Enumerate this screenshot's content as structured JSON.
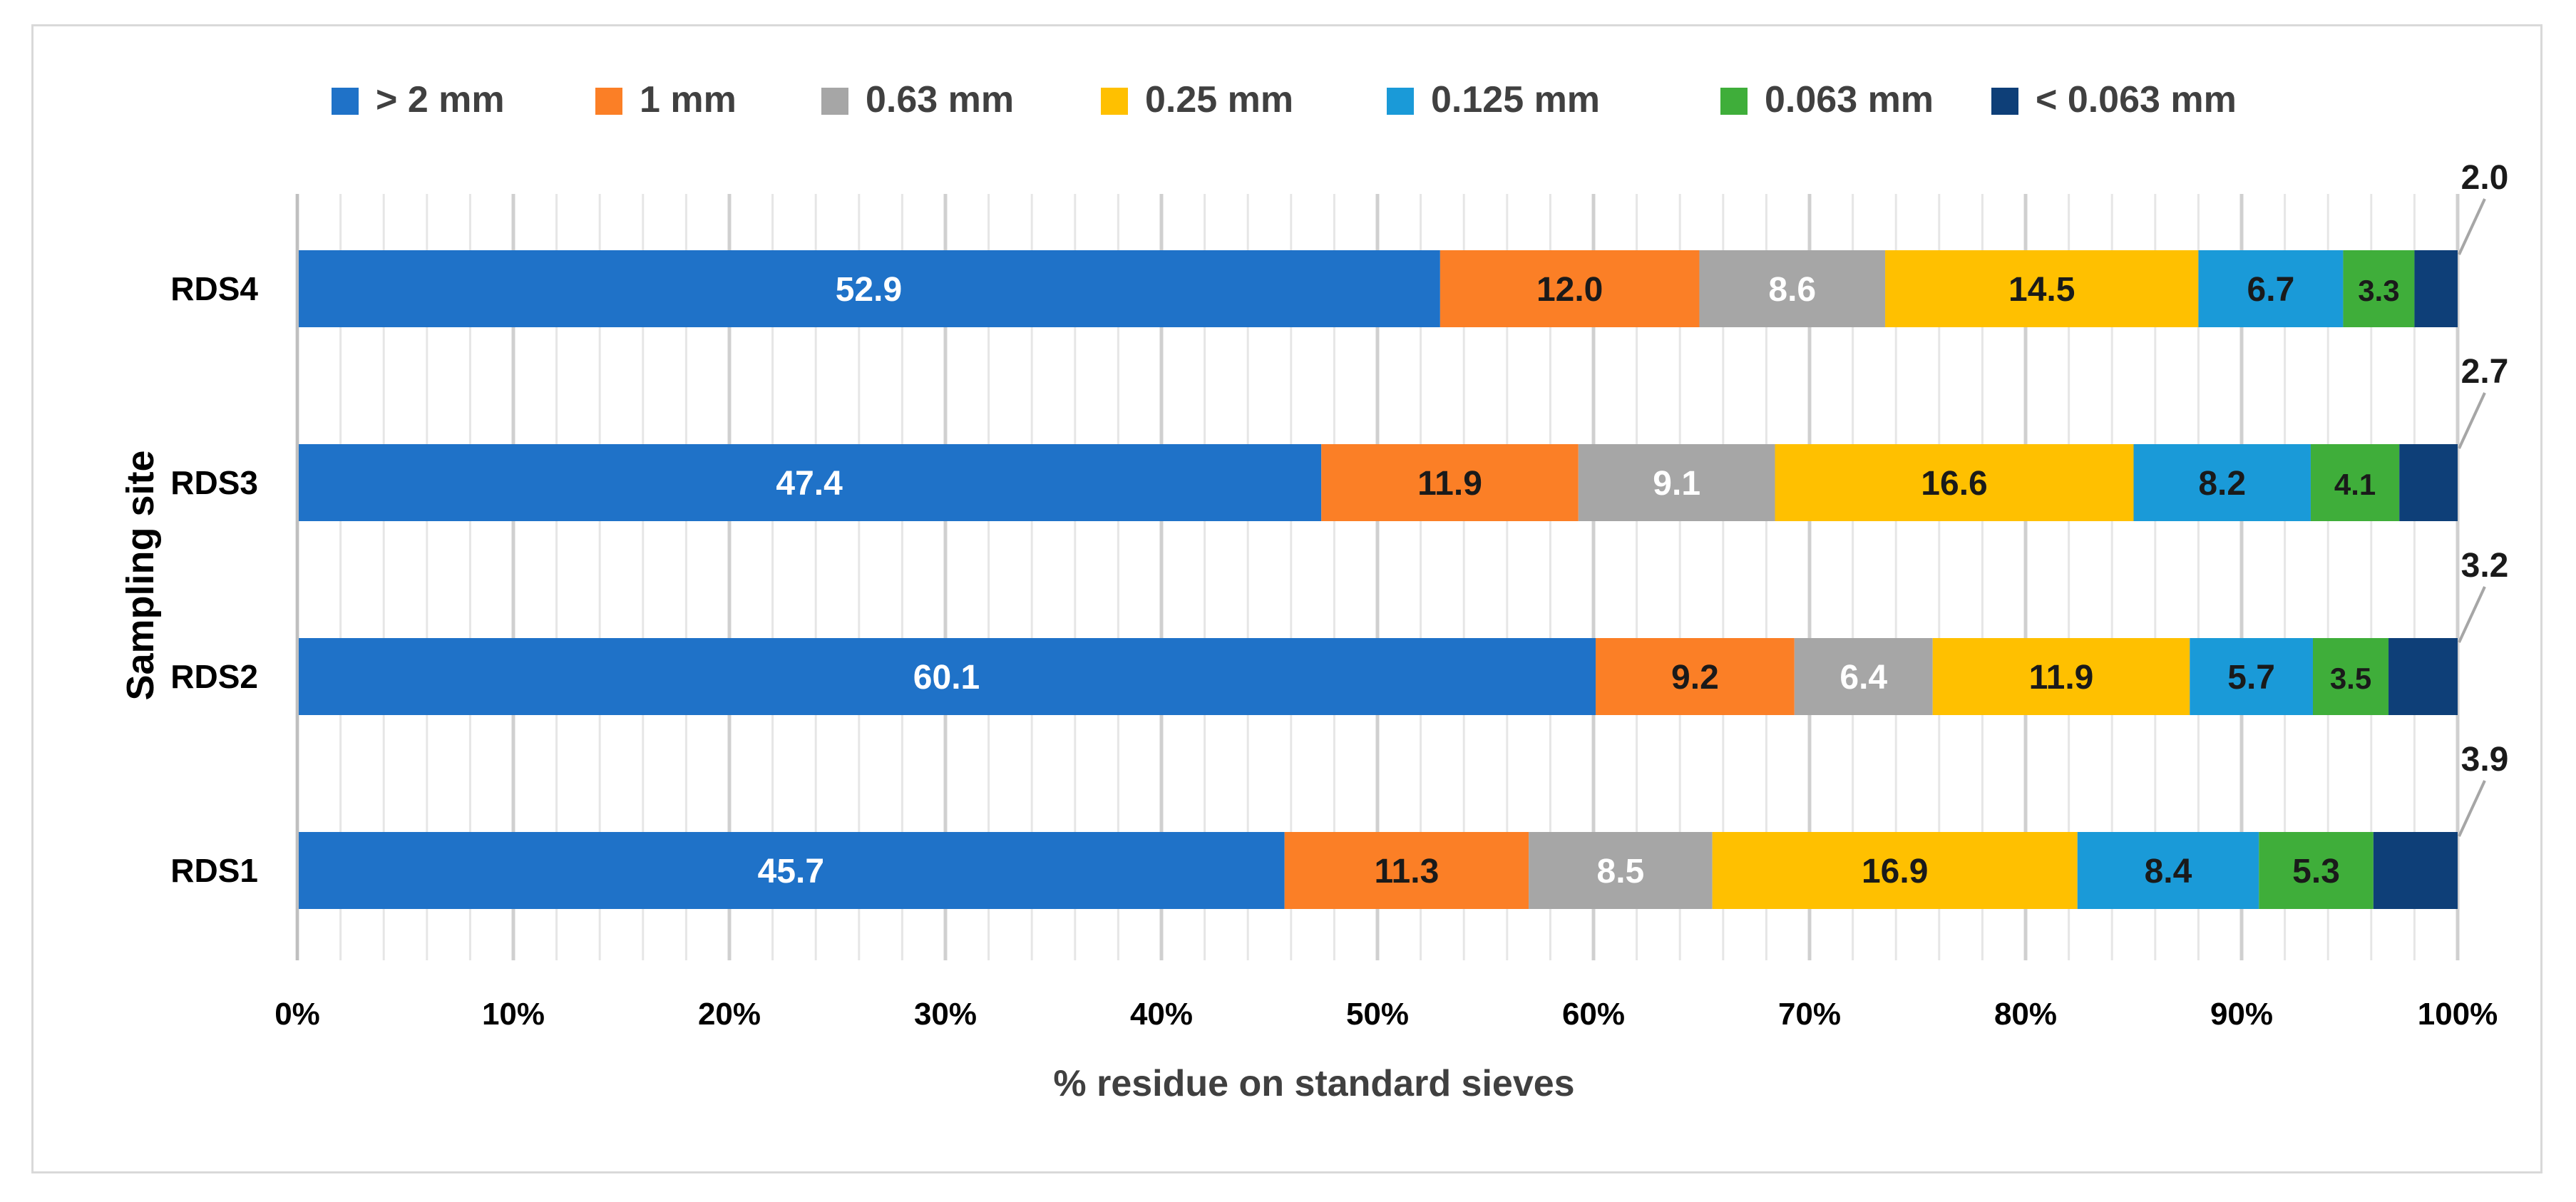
{
  "chart_data": {
    "type": "bar",
    "orientation": "horizontal",
    "stacked": "percent",
    "title": "",
    "xlabel": "% residue on standard sieves",
    "ylabel": "Sampling site",
    "xlim": [
      0,
      100
    ],
    "x_tick_labels": [
      "0%",
      "10%",
      "20%",
      "30%",
      "40%",
      "50%",
      "60%",
      "70%",
      "80%",
      "90%",
      "100%"
    ],
    "categories": [
      "RDS4",
      "RDS3",
      "RDS2",
      "RDS1"
    ],
    "legend_position": "top",
    "grid": true,
    "series": [
      {
        "name": "> 2 mm",
        "color": "#1F72C8",
        "label_color": "#ffffff",
        "values": [
          52.9,
          47.4,
          60.1,
          45.7
        ],
        "labels": [
          "52.9",
          "47.4",
          "60.1",
          "45.7"
        ]
      },
      {
        "name": "1 mm",
        "color": "#FB7F26",
        "label_color": "#1a1a1a",
        "values": [
          12.0,
          11.9,
          9.2,
          11.3
        ],
        "labels": [
          "12.0",
          "11.9",
          "9.2",
          "11.3"
        ]
      },
      {
        "name": "0.63 mm",
        "color": "#A6A6A6",
        "label_color": "#ffffff",
        "values": [
          8.6,
          9.1,
          6.4,
          8.5
        ],
        "labels": [
          "8.6",
          "9.1",
          "6.4",
          "8.5"
        ]
      },
      {
        "name": "0.25 mm",
        "color": "#FFC000",
        "label_color": "#1a1a1a",
        "values": [
          14.5,
          16.6,
          11.9,
          16.9
        ],
        "labels": [
          "14.5",
          "16.6",
          "11.9",
          "16.9"
        ]
      },
      {
        "name": "0.125 mm",
        "color": "#1A9AD8",
        "label_color": "#1a1a1a",
        "values": [
          6.7,
          8.2,
          5.7,
          8.4
        ],
        "labels": [
          "6.7",
          "8.2",
          "5.7",
          "8.4"
        ]
      },
      {
        "name": "0.063 mm",
        "color": "#3FAE3A",
        "label_color": "#1a1a1a",
        "values": [
          3.3,
          4.1,
          3.5,
          5.3
        ],
        "labels": [
          "3.3",
          "4.1",
          "3.5",
          "5.3"
        ]
      },
      {
        "name": "< 0.063 mm",
        "color": "#0E3F78",
        "label_color": "#1a1a1a",
        "values": [
          2.0,
          2.7,
          3.2,
          3.9
        ],
        "labels": [
          "2.0",
          "2.7",
          "3.2",
          "3.9"
        ],
        "label_outside": true
      }
    ]
  }
}
